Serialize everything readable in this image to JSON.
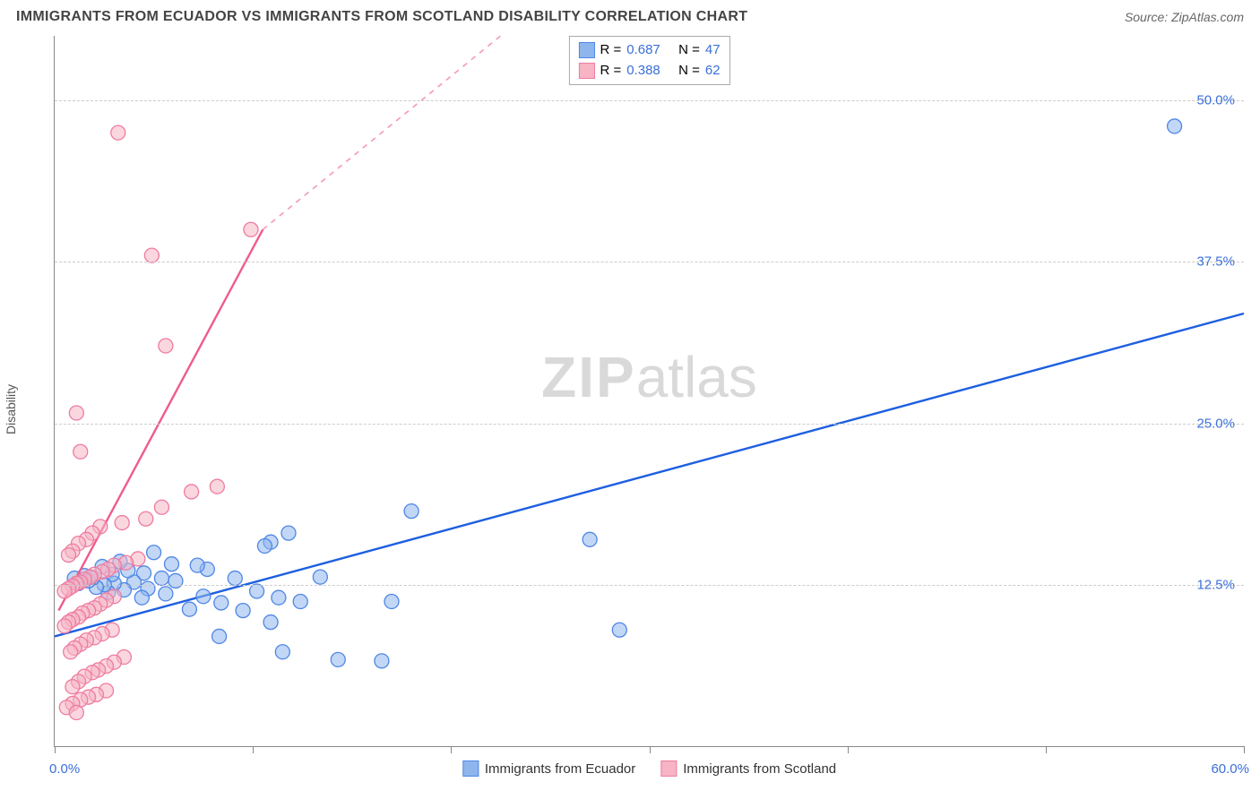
{
  "title": "IMMIGRANTS FROM ECUADOR VS IMMIGRANTS FROM SCOTLAND DISABILITY CORRELATION CHART",
  "source_prefix": "Source: ",
  "source": "ZipAtlas.com",
  "ylabel": "Disability",
  "watermark_bold": "ZIP",
  "watermark_rest": "atlas",
  "chart": {
    "type": "scatter",
    "xlim": [
      0,
      60
    ],
    "ylim": [
      0,
      55
    ],
    "x_tick_positions": [
      0,
      10,
      20,
      30,
      40,
      50,
      60
    ],
    "y_gridlines": [
      12.5,
      25.0,
      37.5,
      50.0
    ],
    "y_tick_labels": [
      "12.5%",
      "25.0%",
      "37.5%",
      "50.0%"
    ],
    "y_tick_color": "#3a6fd8",
    "x_min_label": "0.0%",
    "x_max_label": "60.0%",
    "x_label_color": "#3a6fd8",
    "grid_color": "#cccccc",
    "axis_color": "#888888",
    "background_color": "#ffffff",
    "marker_radius": 8,
    "marker_opacity": 0.55,
    "line_width": 2.4,
    "series": [
      {
        "name": "Immigrants from Ecuador",
        "color_fill": "#8fb6ec",
        "color_stroke": "#4f86e7",
        "line_color": "#1d5fe0",
        "R": "0.687",
        "N": "47",
        "trend_solid": {
          "x1": 0,
          "y1": 8.5,
          "x2": 60,
          "y2": 33.5
        },
        "points": [
          [
            56.5,
            48.0
          ],
          [
            28.5,
            9.0
          ],
          [
            27.0,
            16.0
          ],
          [
            18.0,
            18.2
          ],
          [
            17.0,
            11.2
          ],
          [
            16.5,
            6.6
          ],
          [
            14.3,
            6.7
          ],
          [
            13.4,
            13.1
          ],
          [
            12.4,
            11.2
          ],
          [
            11.8,
            16.5
          ],
          [
            11.5,
            7.3
          ],
          [
            11.3,
            11.5
          ],
          [
            10.9,
            9.6
          ],
          [
            10.9,
            15.8
          ],
          [
            10.6,
            15.5
          ],
          [
            10.2,
            12.0
          ],
          [
            9.5,
            10.5
          ],
          [
            9.1,
            13.0
          ],
          [
            8.4,
            11.1
          ],
          [
            8.3,
            8.5
          ],
          [
            7.7,
            13.7
          ],
          [
            7.5,
            11.6
          ],
          [
            7.2,
            14.0
          ],
          [
            6.8,
            10.6
          ],
          [
            6.1,
            12.8
          ],
          [
            5.9,
            14.1
          ],
          [
            5.6,
            11.8
          ],
          [
            5.4,
            13.0
          ],
          [
            5.0,
            15.0
          ],
          [
            4.7,
            12.2
          ],
          [
            4.5,
            13.4
          ],
          [
            4.4,
            11.5
          ],
          [
            4.0,
            12.7
          ],
          [
            3.7,
            13.6
          ],
          [
            3.5,
            12.1
          ],
          [
            3.3,
            14.3
          ],
          [
            3.0,
            12.6
          ],
          [
            2.9,
            13.3
          ],
          [
            2.7,
            11.9
          ],
          [
            2.5,
            12.5
          ],
          [
            2.4,
            13.9
          ],
          [
            2.1,
            12.3
          ],
          [
            1.9,
            13.0
          ],
          [
            1.7,
            12.8
          ],
          [
            1.5,
            13.2
          ],
          [
            1.2,
            12.6
          ],
          [
            1.0,
            13.0
          ]
        ]
      },
      {
        "name": "Immigrants from Scotland",
        "color_fill": "#f6b4c4",
        "color_stroke": "#ef7ba0",
        "line_color": "#ef5b8a",
        "R": "0.388",
        "N": "62",
        "trend_solid": {
          "x1": 0.2,
          "y1": 10.5,
          "x2": 10.5,
          "y2": 40.0
        },
        "trend_dashed": {
          "x1": 10.5,
          "y1": 40.0,
          "x2": 22.5,
          "y2": 55.0
        },
        "points": [
          [
            3.2,
            47.5
          ],
          [
            9.9,
            40.0
          ],
          [
            4.9,
            38.0
          ],
          [
            5.6,
            31.0
          ],
          [
            1.1,
            25.8
          ],
          [
            1.3,
            22.8
          ],
          [
            8.2,
            20.1
          ],
          [
            6.9,
            19.7
          ],
          [
            5.4,
            18.5
          ],
          [
            4.6,
            17.6
          ],
          [
            3.4,
            17.3
          ],
          [
            2.3,
            17.0
          ],
          [
            1.9,
            16.5
          ],
          [
            1.6,
            16.0
          ],
          [
            1.2,
            15.7
          ],
          [
            0.9,
            15.1
          ],
          [
            0.7,
            14.8
          ],
          [
            4.2,
            14.5
          ],
          [
            3.6,
            14.2
          ],
          [
            3.0,
            14.0
          ],
          [
            2.7,
            13.7
          ],
          [
            2.4,
            13.5
          ],
          [
            2.0,
            13.3
          ],
          [
            1.8,
            13.1
          ],
          [
            1.5,
            12.9
          ],
          [
            1.3,
            12.7
          ],
          [
            1.1,
            12.6
          ],
          [
            0.9,
            12.4
          ],
          [
            0.7,
            12.2
          ],
          [
            0.5,
            12.0
          ],
          [
            3.0,
            11.6
          ],
          [
            2.6,
            11.3
          ],
          [
            2.3,
            11.0
          ],
          [
            2.0,
            10.7
          ],
          [
            1.7,
            10.5
          ],
          [
            1.4,
            10.3
          ],
          [
            1.2,
            10.0
          ],
          [
            0.9,
            9.8
          ],
          [
            0.7,
            9.6
          ],
          [
            0.5,
            9.3
          ],
          [
            2.9,
            9.0
          ],
          [
            2.4,
            8.7
          ],
          [
            2.0,
            8.4
          ],
          [
            1.6,
            8.2
          ],
          [
            1.3,
            7.9
          ],
          [
            1.0,
            7.6
          ],
          [
            0.8,
            7.3
          ],
          [
            3.5,
            6.9
          ],
          [
            3.0,
            6.5
          ],
          [
            2.6,
            6.2
          ],
          [
            2.2,
            5.9
          ],
          [
            1.9,
            5.7
          ],
          [
            1.5,
            5.4
          ],
          [
            1.2,
            5.0
          ],
          [
            0.9,
            4.6
          ],
          [
            2.6,
            4.3
          ],
          [
            2.1,
            4.0
          ],
          [
            1.7,
            3.8
          ],
          [
            1.3,
            3.6
          ],
          [
            0.9,
            3.3
          ],
          [
            0.6,
            3.0
          ],
          [
            1.1,
            2.6
          ]
        ]
      }
    ]
  },
  "legend_top": {
    "R_label": "R =",
    "N_label": "N =",
    "value_color": "#3a6fd8",
    "label_color": "#222"
  },
  "legend_bottom_color": "#333"
}
